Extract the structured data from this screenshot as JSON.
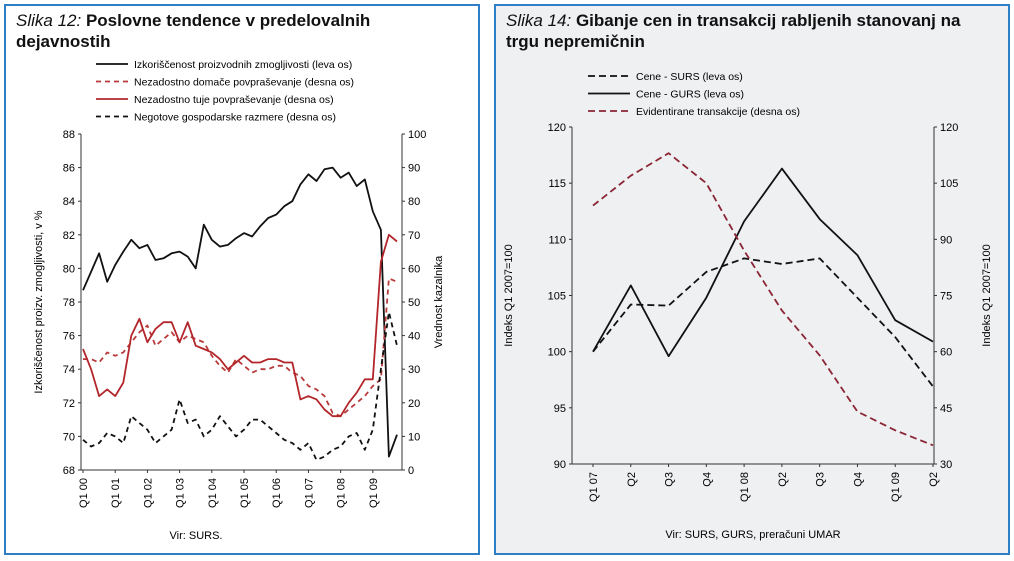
{
  "colors": {
    "frame": "#2f7fc8",
    "black": "#111111",
    "red_dashed": "#b83a3a",
    "red_solid": "#b3262b",
    "maroon_dashed": "#8b2535"
  },
  "charts": [
    {
      "figure_label": "Slika 12:",
      "title_lines": [
        "Poslovne tendence v predelovalnih",
        "dejavnostih"
      ],
      "source": "Vir: SURS.",
      "chart_data": {
        "type": "line",
        "xlabel": "",
        "ylabel_left": "Izkoriščenost proizv. zmogljivosti, v %",
        "ylabel_right": "Vrednost kazalnika",
        "ylim_left": [
          68,
          88
        ],
        "ylim_right": [
          0,
          100
        ],
        "yticks_left": [
          "68",
          "70",
          "72",
          "74",
          "76",
          "78",
          "80",
          "82",
          "84",
          "86",
          "88"
        ],
        "yticks_right": [
          "0",
          "10",
          "20",
          "30",
          "40",
          "50",
          "60",
          "70",
          "80",
          "90",
          "100"
        ],
        "xticks": [
          "Q1 00",
          "Q1 01",
          "Q1 02",
          "Q1 03",
          "Q1 04",
          "Q1 05",
          "Q1 06",
          "Q1 07",
          "Q1 08",
          "Q1 09"
        ],
        "legend_placement": "top",
        "series": [
          {
            "name": "Izkoriščenost proizvodnih zmogljivosti (leva os)",
            "axis": "left",
            "style": "solid",
            "color": "#111111",
            "x": [
              0,
              1,
              2,
              3,
              4,
              5,
              6,
              7,
              8,
              9,
              10,
              11,
              12,
              13,
              14,
              15,
              16,
              17,
              18,
              19,
              20,
              21,
              22,
              23,
              24,
              25,
              26,
              27,
              28,
              29,
              30,
              31,
              32,
              33,
              34,
              35,
              36,
              37,
              38,
              39
            ],
            "values": [
              78.7,
              79.8,
              80.9,
              79.2,
              80.2,
              81.0,
              81.7,
              81.2,
              81.4,
              80.5,
              80.6,
              80.9,
              81.0,
              80.7,
              80.0,
              82.6,
              81.7,
              81.3,
              81.4,
              81.8,
              82.1,
              81.9,
              82.5,
              83.0,
              83.2,
              83.7,
              84.0,
              85.0,
              85.6,
              85.2,
              85.9,
              86.0,
              85.4,
              85.7,
              84.9,
              85.3,
              83.4,
              82.3,
              68.8,
              70.1
            ]
          },
          {
            "name": "Nezadostno domače povpraševanje (desna os)",
            "axis": "right",
            "style": "dashed",
            "color": "#b83a3a",
            "x": [
              0,
              1,
              2,
              3,
              4,
              5,
              6,
              7,
              8,
              9,
              10,
              11,
              12,
              13,
              14,
              15,
              16,
              17,
              18,
              19,
              20,
              21,
              22,
              23,
              24,
              25,
              26,
              27,
              28,
              29,
              30,
              31,
              32,
              33,
              34,
              35,
              36,
              37,
              38,
              39
            ],
            "values": [
              33,
              33,
              32,
              35,
              34,
              35,
              38,
              41,
              43,
              37,
              39,
              41,
              38,
              40,
              39,
              38,
              34,
              31,
              29,
              33,
              31,
              29,
              30,
              30,
              31,
              31,
              29,
              28,
              25,
              24,
              22,
              17,
              16,
              18,
              20,
              22,
              25,
              27,
              57,
              56
            ]
          },
          {
            "name": "Nezadostno tuje povpraševanje (desna os)",
            "axis": "right",
            "style": "solid",
            "color": "#b3262b",
            "x": [
              0,
              1,
              2,
              3,
              4,
              5,
              6,
              7,
              8,
              9,
              10,
              11,
              12,
              13,
              14,
              15,
              16,
              17,
              18,
              19,
              20,
              21,
              22,
              23,
              24,
              25,
              26,
              27,
              28,
              29,
              30,
              31,
              32,
              33,
              34,
              35,
              36,
              37,
              38,
              39
            ],
            "values": [
              36,
              30,
              22,
              24,
              22,
              26,
              40,
              45,
              38,
              42,
              44,
              44,
              38,
              44,
              37,
              36,
              35,
              33,
              30,
              32,
              34,
              32,
              32,
              33,
              33,
              32,
              32,
              21,
              22,
              21,
              18,
              16,
              16,
              20,
              23,
              27,
              27,
              62,
              70,
              68
            ]
          },
          {
            "name": "Negotove gospodarske razmere (desna os)",
            "axis": "right",
            "style": "dashed",
            "color": "#111111",
            "x": [
              0,
              1,
              2,
              3,
              4,
              5,
              6,
              7,
              8,
              9,
              10,
              11,
              12,
              13,
              14,
              15,
              16,
              17,
              18,
              19,
              20,
              21,
              22,
              23,
              24,
              25,
              26,
              27,
              28,
              29,
              30,
              31,
              32,
              33,
              34,
              35,
              36,
              37,
              38,
              39
            ],
            "values": [
              9,
              7,
              8,
              11,
              10,
              8,
              16,
              14,
              12,
              8,
              10,
              12,
              21,
              14,
              15,
              10,
              12,
              16,
              13,
              10,
              12,
              15,
              15,
              13,
              11,
              9,
              8,
              6,
              8,
              3,
              4,
              6,
              7,
              10,
              11,
              6,
              12,
              30,
              47,
              37
            ]
          }
        ]
      }
    },
    {
      "figure_label": "Slika 14:",
      "title_lines": [
        "Gibanje cen in transakcij rabljenih stanovanj na",
        "trgu nepremičnin"
      ],
      "source": "Vir: SURS, GURS, preračuni UMAR",
      "chart_data": {
        "type": "line",
        "xlabel": "",
        "ylabel_left": "Indeks Q1 2007=100",
        "ylabel_right": "Indeks Q1 2007=100",
        "ylim_left": [
          90,
          120
        ],
        "ylim_right": [
          30,
          120
        ],
        "yticks_left": [
          "90",
          "95",
          "100",
          "105",
          "110",
          "115",
          "120"
        ],
        "yticks_right": [
          "30",
          "45",
          "60",
          "75",
          "90",
          "105",
          "120"
        ],
        "xticks": [
          "Q1 07",
          "Q2",
          "Q3",
          "Q4",
          "Q1 08",
          "Q2",
          "Q3",
          "Q4",
          "Q1 09",
          "Q2"
        ],
        "legend_placement": "top",
        "series": [
          {
            "name": "Cene - SURS (leva os)",
            "axis": "left",
            "style": "dashed",
            "color": "#111111",
            "values": [
              100.0,
              104.2,
              104.1,
              107.1,
              108.3,
              107.8,
              108.3,
              104.8,
              101.3,
              96.9
            ]
          },
          {
            "name": "Cene - GURS (leva os)",
            "axis": "left",
            "style": "solid",
            "color": "#111111",
            "values": [
              100.0,
              105.9,
              99.6,
              104.8,
              111.6,
              116.3,
              111.8,
              108.6,
              102.8,
              100.9
            ]
          },
          {
            "name": "Evidentirane transakcije (desna os)",
            "axis": "right",
            "style": "dashed",
            "color": "#8b2535",
            "values": [
              99,
              107,
              113,
              105,
              87,
              71,
              59,
              44,
              39,
              35
            ]
          }
        ]
      }
    }
  ]
}
